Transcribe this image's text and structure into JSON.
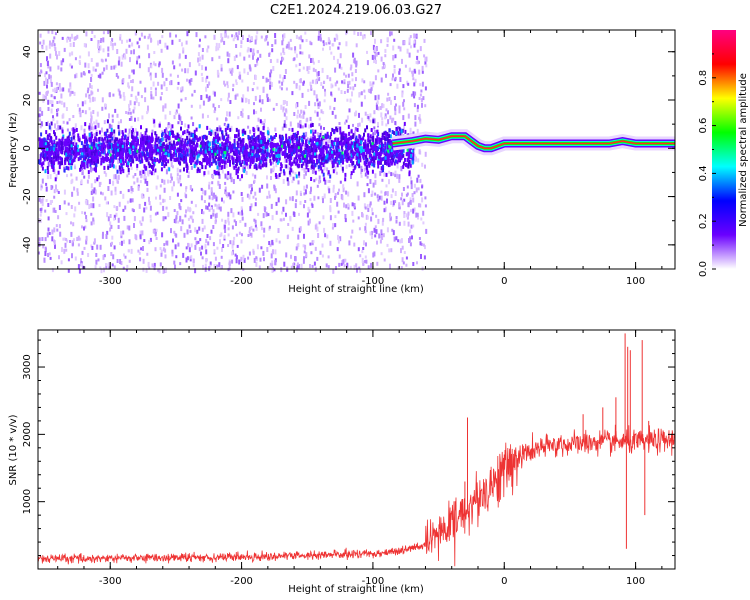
{
  "title": "C2E1.2024.219.06.03.G27",
  "chart_data": [
    {
      "type": "heatmap",
      "xlabel": "Height of straight line (km)",
      "ylabel": "Frequency (Hz)",
      "xlim": [
        -355,
        130
      ],
      "ylim": [
        -50,
        49
      ],
      "xticks": [
        -300,
        -200,
        -100,
        0,
        100
      ],
      "yticks": [
        -40,
        -20,
        0,
        20,
        40
      ],
      "colorbar": {
        "label": "Normalized spectral amplitude",
        "range": [
          0,
          1
        ],
        "ticks": [
          "0.0",
          "0.2",
          "0.4",
          "0.6",
          "0.8"
        ],
        "colormap": [
          "#ffffff",
          "#6a00ff",
          "#0000ff",
          "#00ffff",
          "#00ff00",
          "#ffff00",
          "#ff0000",
          "#ff0080"
        ]
      },
      "features": {
        "noise_region_x": [
          -355,
          -60
        ],
        "noise_band_hz": [
          -8,
          8
        ],
        "signal_track": {
          "x": [
            -85,
            -70,
            -60,
            -50,
            -40,
            -30,
            -25,
            -20,
            -15,
            -10,
            0,
            20,
            40,
            60,
            80,
            90,
            100,
            110,
            130
          ],
          "y": [
            2,
            3,
            4,
            3.5,
            5,
            5,
            3,
            1,
            0,
            0,
            2,
            2,
            2,
            2,
            2,
            3,
            2,
            2,
            2
          ]
        }
      }
    },
    {
      "type": "line",
      "xlabel": "Height of straight line (km)",
      "ylabel": "SNR (10 * v/v)",
      "xlim": [
        -355,
        130
      ],
      "ylim": [
        0,
        3550
      ],
      "xticks": [
        -300,
        -200,
        -100,
        0,
        100
      ],
      "yticks": [
        1000,
        2000,
        3000
      ],
      "line_color": "#ee3333",
      "series": [
        {
          "x": [
            -355,
            -300,
            -250,
            -200,
            -150,
            -100,
            -80,
            -60,
            -50,
            -40,
            -30,
            -20,
            -10,
            0,
            10,
            20,
            30,
            40,
            50,
            60,
            70,
            80,
            90,
            100,
            110,
            120,
            130
          ],
          "y": [
            150,
            160,
            170,
            180,
            200,
            230,
            270,
            350,
            500,
            700,
            850,
            1050,
            1250,
            1450,
            1650,
            1750,
            1800,
            1850,
            1850,
            1870,
            1880,
            1880,
            1890,
            1880,
            1900,
            1900,
            1920
          ]
        }
      ]
    }
  ]
}
